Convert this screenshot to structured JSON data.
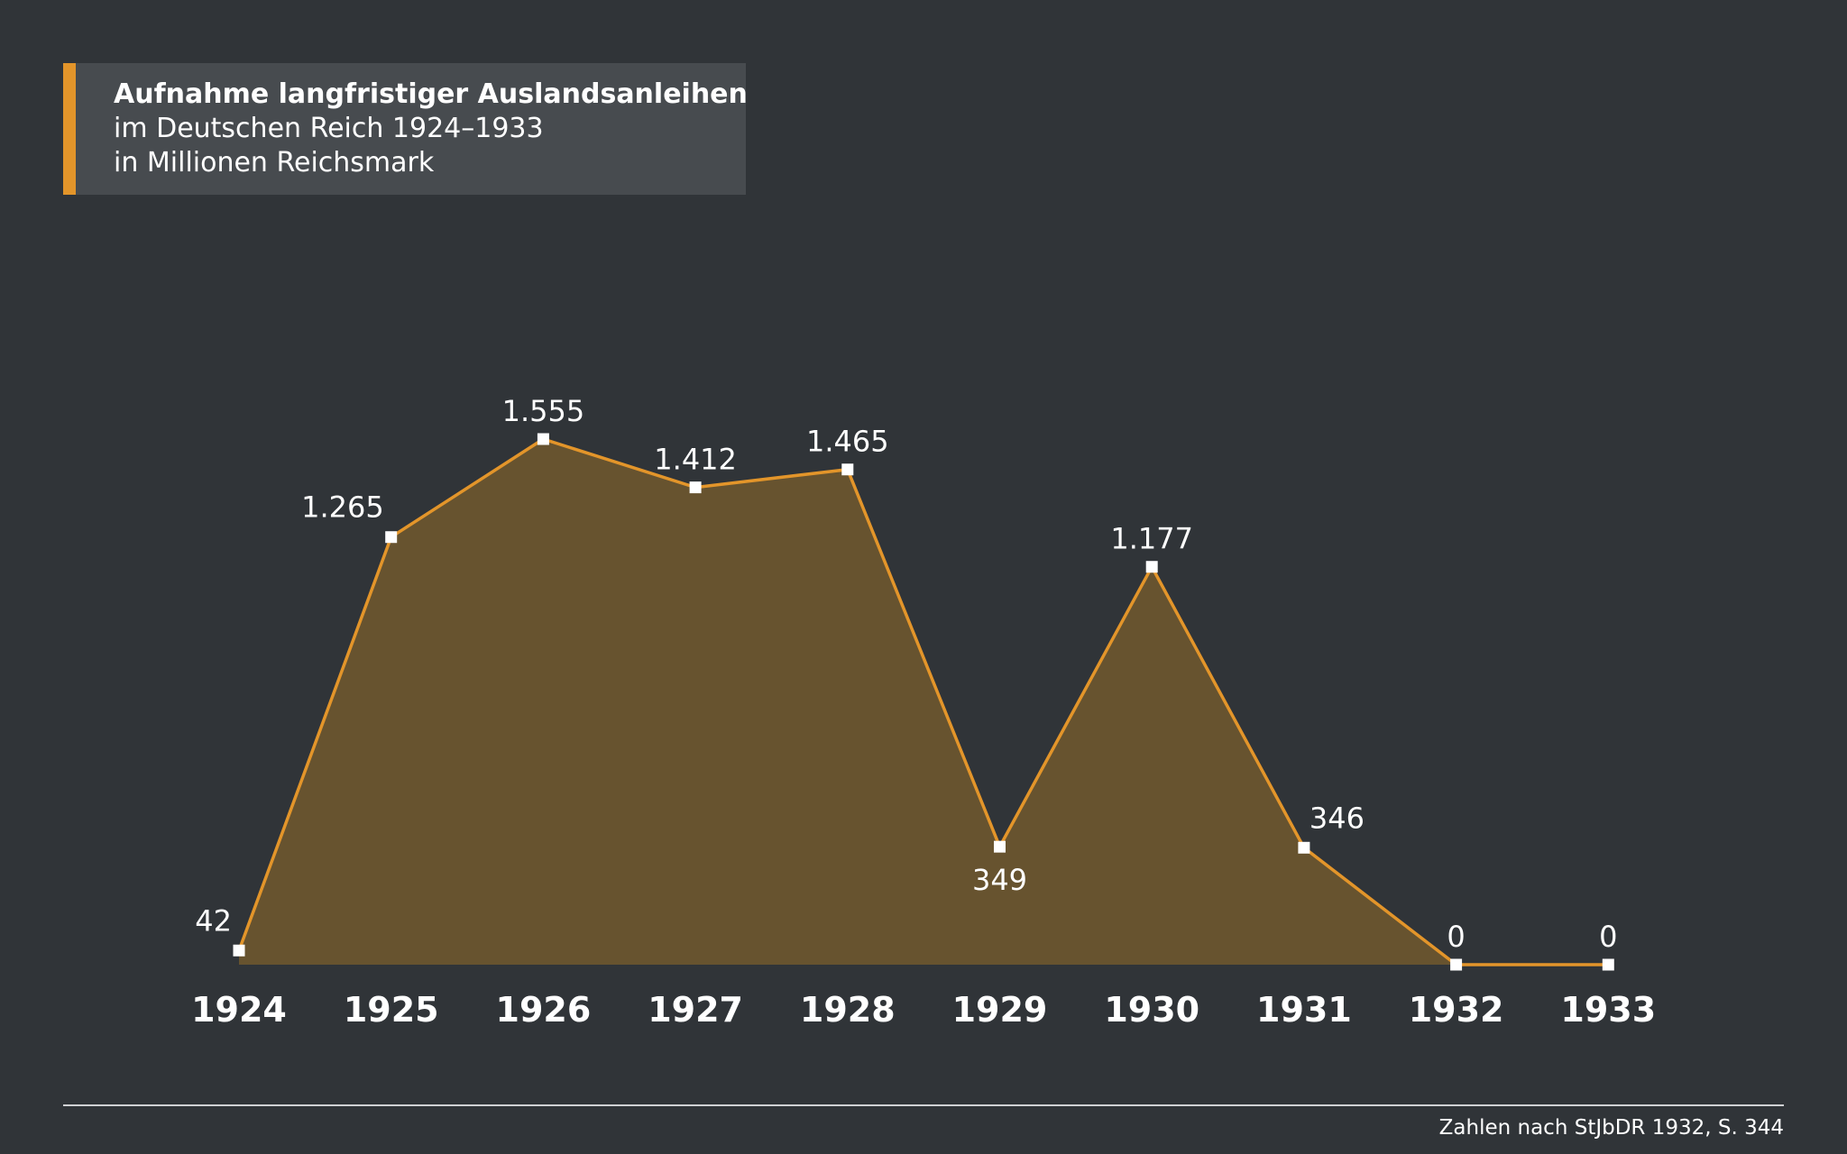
{
  "title": {
    "line1": "Aufnahme langfristiger Auslandsanleihen",
    "line2": "im Deutschen Reich 1924–1933",
    "line3": "in Millionen Reichsmark"
  },
  "source": "Zahlen nach StJbDR 1932, S. 344",
  "colors": {
    "background": "#303438",
    "title_box": "#474b4f",
    "accent": "#e3952a",
    "area_fill": "#67532f",
    "marker": "#ffffff"
  },
  "chart_data": {
    "type": "area",
    "categories": [
      "1924",
      "1925",
      "1926",
      "1927",
      "1928",
      "1929",
      "1930",
      "1931",
      "1932",
      "1933"
    ],
    "values": [
      42,
      1265,
      1555,
      1412,
      1465,
      349,
      1177,
      346,
      0,
      0
    ],
    "value_labels": [
      "42",
      "1.265",
      "1.555",
      "1.412",
      "1.465",
      "349",
      "1.177",
      "346",
      "0",
      "0"
    ],
    "label_positions": [
      "left",
      "left",
      "above",
      "above",
      "above",
      "below",
      "above",
      "right",
      "above",
      "above"
    ],
    "ylim": [
      0,
      1555
    ],
    "grid": false,
    "legend": "none"
  }
}
